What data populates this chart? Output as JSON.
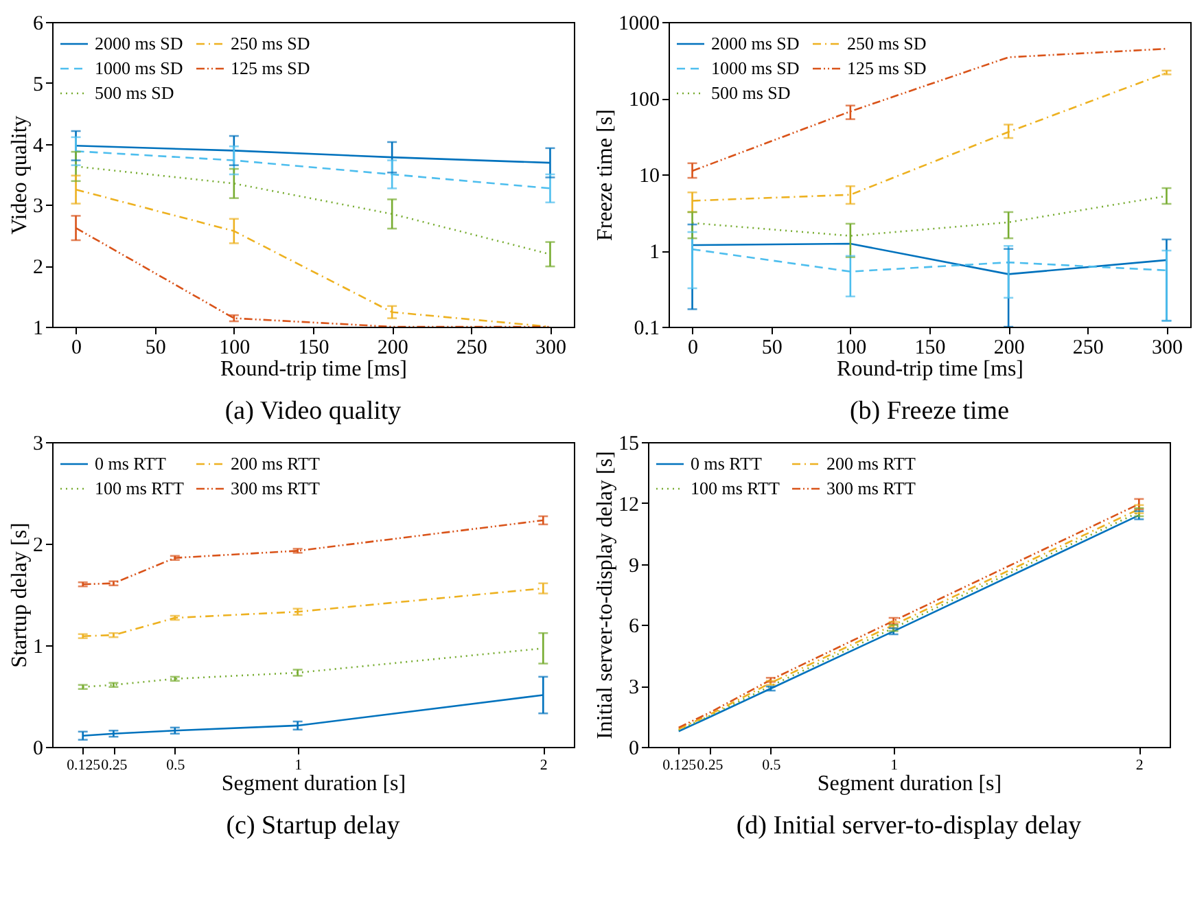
{
  "chart_data": [
    {
      "type": "line",
      "title": "(a) Video quality",
      "xlabel": "Round-trip time [ms]",
      "ylabel": "Video quality",
      "x": [
        0,
        100,
        200,
        300
      ],
      "xlim": [
        -15,
        315
      ],
      "xticks": [
        0,
        50,
        100,
        150,
        200,
        250,
        300
      ],
      "ylim": [
        1,
        6
      ],
      "yticks": [
        1,
        2,
        3,
        4,
        5,
        6
      ],
      "grid": false,
      "legend": "top left",
      "marker": "none",
      "series": [
        {
          "name": "2000 ms SD",
          "color": "#0072bd",
          "line_style": "solid",
          "values": [
            3.97,
            3.89,
            3.78,
            3.69
          ],
          "errors": [
            0.24,
            0.24,
            0.25,
            0.24
          ]
        },
        {
          "name": "1000 ms SD",
          "color": "#4dbeee",
          "line_style": "dashed",
          "values": [
            3.88,
            3.73,
            3.5,
            3.27
          ],
          "errors": [
            0.23,
            0.23,
            0.23,
            0.23
          ]
        },
        {
          "name": "500 ms SD",
          "color": "#77ac30",
          "line_style": "dotted",
          "values": [
            3.63,
            3.35,
            2.85,
            2.19
          ],
          "errors": [
            0.24,
            0.24,
            0.24,
            0.2
          ]
        },
        {
          "name": "250 ms SD",
          "color": "#edb120",
          "line_style": "dashdot",
          "values": [
            3.25,
            2.57,
            1.24,
            1.0
          ],
          "errors": [
            0.23,
            0.2,
            0.1,
            null
          ]
        },
        {
          "name": "125 ms SD",
          "color": "#d95319",
          "line_style": "dashdotdot",
          "values": [
            2.62,
            1.14,
            1.0,
            1.0
          ],
          "errors": [
            0.2,
            0.05,
            null,
            null
          ]
        }
      ]
    },
    {
      "type": "line",
      "title": "(b) Freeze time",
      "xlabel": "Round-trip time [ms]",
      "ylabel": "Freeze time [s]",
      "x": [
        0,
        100,
        200,
        300
      ],
      "xlim": [
        -15,
        315
      ],
      "xticks": [
        0,
        50,
        100,
        150,
        200,
        250,
        300
      ],
      "ylim": [
        0.1,
        1000
      ],
      "yticks": [
        0.1,
        1,
        10,
        100,
        1000
      ],
      "log": "y",
      "grid": false,
      "legend": "top left",
      "marker": "none",
      "series": [
        {
          "name": "2000 ms SD",
          "color": "#0072bd",
          "line_style": "solid",
          "values": [
            1.18,
            1.23,
            0.49,
            0.75
          ],
          "errors": [
            [
              0.17,
              2.2
            ],
            null,
            [
              0.1,
              1.05
            ],
            [
              0.12,
              1.4
            ]
          ]
        },
        {
          "name": "1000 ms SD",
          "color": "#4dbeee",
          "line_style": "dashed",
          "values": [
            1.04,
            0.53,
            0.7,
            0.55
          ],
          "errors": [
            [
              0.32,
              1.75
            ],
            [
              0.25,
              0.85
            ],
            [
              0.24,
              1.15
            ],
            [
              0.12,
              1.0
            ]
          ]
        },
        {
          "name": "500 ms SD",
          "color": "#77ac30",
          "line_style": "dotted",
          "values": [
            2.3,
            1.56,
            2.35,
            5.2
          ],
          "errors": [
            [
              1.45,
              3.2
            ],
            [
              0.82,
              2.25
            ],
            [
              1.45,
              3.2
            ],
            [
              4.1,
              6.6
            ]
          ]
        },
        {
          "name": "250 ms SD",
          "color": "#edb120",
          "line_style": "dashdot",
          "values": [
            4.5,
            5.4,
            36,
            215
          ],
          "errors": [
            [
              3.2,
              5.8
            ],
            [
              4.1,
              7.0
            ],
            [
              30,
              45
            ],
            [
              205,
              230
            ]
          ]
        },
        {
          "name": "125 ms SD",
          "color": "#d95319",
          "line_style": "dashdotdot",
          "values": [
            11.1,
            67,
            344,
            445
          ],
          "errors": [
            [
              9,
              14
            ],
            [
              53,
              80
            ],
            null,
            null
          ]
        }
      ]
    },
    {
      "type": "line",
      "title": "(c) Startup delay",
      "xlabel": "Segment duration [s]",
      "ylabel": "Startup delay [s]",
      "x": [
        0.125,
        0.25,
        0.5,
        1,
        2
      ],
      "xlim": [
        0,
        2.125
      ],
      "xticks": [
        0.125,
        0.25,
        0.5,
        1,
        2
      ],
      "ylim": [
        0,
        3
      ],
      "yticks": [
        0,
        1,
        2,
        3
      ],
      "grid": false,
      "legend": "top left",
      "marker": "none",
      "series": [
        {
          "name": "0 ms RTT",
          "color": "#0072bd",
          "line_style": "solid",
          "values": [
            0.11,
            0.13,
            0.16,
            0.21,
            0.51
          ],
          "errors": [
            0.04,
            0.03,
            0.03,
            0.04,
            0.18
          ]
        },
        {
          "name": "100 ms RTT",
          "color": "#77ac30",
          "line_style": "dotted",
          "values": [
            0.59,
            0.61,
            0.67,
            0.73,
            0.97
          ],
          "errors": [
            0.02,
            0.02,
            0.02,
            0.03,
            0.15
          ]
        },
        {
          "name": "200 ms RTT",
          "color": "#edb120",
          "line_style": "dashdot",
          "values": [
            1.09,
            1.1,
            1.27,
            1.33,
            1.56
          ],
          "errors": [
            0.02,
            0.02,
            0.02,
            0.03,
            0.05
          ]
        },
        {
          "name": "300 ms RTT",
          "color": "#d95319",
          "line_style": "dashdotdot",
          "values": [
            1.6,
            1.61,
            1.86,
            1.93,
            2.23
          ],
          "errors": [
            0.02,
            0.02,
            0.02,
            0.02,
            0.04
          ]
        }
      ]
    },
    {
      "type": "line",
      "title": "(d) Initial server-to-display delay",
      "xlabel": "Segment duration [s]",
      "ylabel": "Initial server-to-display delay [s]",
      "x": [
        0.125,
        0.25,
        0.5,
        1,
        2
      ],
      "xlim": [
        0,
        2.125
      ],
      "xticks": [
        0.125,
        0.25,
        0.5,
        1,
        2
      ],
      "ylim": [
        0,
        15
      ],
      "yticks": [
        0,
        3,
        6,
        9,
        12,
        15
      ],
      "grid": false,
      "legend": "top left",
      "marker": "none",
      "series": [
        {
          "name": "0 ms RTT",
          "color": "#0072bd",
          "line_style": "solid",
          "values": [
            0.77,
            1.46,
            2.87,
            5.69,
            11.4
          ],
          "errors": [
            null,
            null,
            0.1,
            0.15,
            0.2
          ]
        },
        {
          "name": "100 ms RTT",
          "color": "#77ac30",
          "line_style": "dotted",
          "values": [
            0.83,
            1.52,
            3.0,
            5.85,
            11.55
          ],
          "errors": [
            null,
            null,
            null,
            0.15,
            0.2
          ]
        },
        {
          "name": "200 ms RTT",
          "color": "#edb120",
          "line_style": "dashdot",
          "values": [
            0.88,
            1.58,
            3.15,
            6.0,
            11.7
          ],
          "errors": [
            null,
            null,
            0.1,
            0.15,
            0.2
          ]
        },
        {
          "name": "300 ms RTT",
          "color": "#d95319",
          "line_style": "dashdotdot",
          "values": [
            0.95,
            1.68,
            3.3,
            6.2,
            11.95
          ],
          "errors": [
            null,
            null,
            0.1,
            0.15,
            0.25
          ]
        }
      ]
    }
  ]
}
